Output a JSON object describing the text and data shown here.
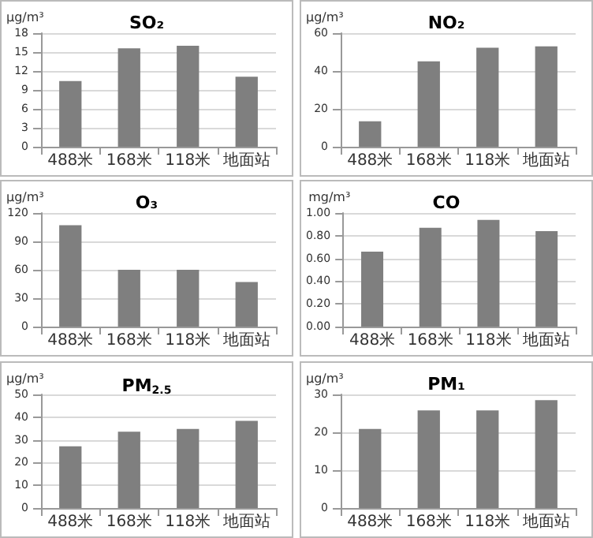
{
  "chart_data": [
    {
      "type": "bar",
      "title": "SO₂",
      "ylabel": "μg/m³",
      "categories": [
        "488米",
        "168米",
        "118米",
        "地面站"
      ],
      "values": [
        10.4,
        15.6,
        16.0,
        11.1
      ],
      "color": "#7f7f7f",
      "ylim": [
        0,
        18
      ],
      "yticks": [
        0,
        3,
        6,
        9,
        12,
        15,
        18
      ],
      "grid": "y"
    },
    {
      "type": "bar",
      "title": "NO₂",
      "ylabel": "μg/m³",
      "categories": [
        "488米",
        "168米",
        "118米",
        "地面站"
      ],
      "values": [
        13.4,
        45.1,
        52.3,
        53.0
      ],
      "color": "#7f7f7f",
      "ylim": [
        0,
        60
      ],
      "yticks": [
        0,
        20,
        40,
        60
      ],
      "grid": "y"
    },
    {
      "type": "bar",
      "title": "O₃",
      "ylabel": "μg/m³",
      "categories": [
        "488米",
        "168米",
        "118米",
        "地面站"
      ],
      "values": [
        107,
        60,
        60,
        47
      ],
      "color": "#7f7f7f",
      "ylim": [
        0,
        120
      ],
      "yticks": [
        0,
        30,
        60,
        90,
        120
      ],
      "grid": "y"
    },
    {
      "type": "bar",
      "title": "CO",
      "ylabel": "mg/m³",
      "categories": [
        "488米",
        "168米",
        "118米",
        "地面站"
      ],
      "values": [
        0.66,
        0.87,
        0.94,
        0.84
      ],
      "color": "#7f7f7f",
      "ylim": [
        0,
        1
      ],
      "yticks": [
        {
          "value": 0,
          "label": "0.00"
        },
        {
          "value": 0.2,
          "label": "0.20"
        },
        {
          "value": 0.4,
          "label": "0.40"
        },
        {
          "value": 0.6,
          "label": "0.60"
        },
        {
          "value": 0.8,
          "label": "0.80"
        },
        {
          "value": 1,
          "label": "1.00"
        }
      ],
      "grid": "y"
    },
    {
      "type": "bar",
      "title": "PM$_{2.5}$",
      "ylabel": "μg/m³",
      "categories": [
        "488米",
        "168米",
        "118米",
        "地面站"
      ],
      "values": [
        27.2,
        33.6,
        34.8,
        38.4
      ],
      "color": "#7f7f7f",
      "ylim": [
        0,
        50
      ],
      "yticks": [
        0,
        10,
        20,
        30,
        40,
        50
      ],
      "grid": "y"
    },
    {
      "type": "bar",
      "title": "PM₁",
      "ylabel": "μg/m³",
      "categories": [
        "488米",
        "168米",
        "118米",
        "地面站"
      ],
      "values": [
        20.9,
        25.8,
        25.8,
        28.5
      ],
      "color": "#7f7f7f",
      "ylim": [
        0,
        30
      ],
      "yticks": [
        0,
        10,
        20,
        30
      ],
      "grid": "y"
    }
  ]
}
